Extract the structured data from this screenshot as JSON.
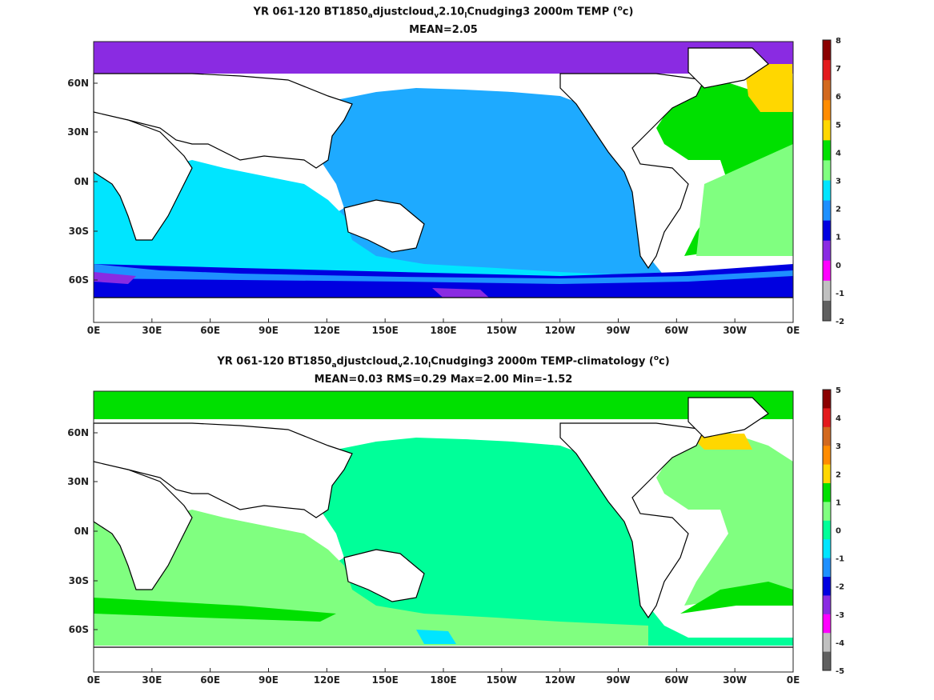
{
  "panels": [
    {
      "title_prefix": "YR 061-120 BT1850",
      "title_sub1": "a",
      "title_mid1": "djustcloud",
      "title_sub2": "v",
      "title_mid2": "2.10",
      "title_sub3": "l",
      "title_suffix": "Cnudging3 2000m TEMP (",
      "title_sup": "o",
      "title_end": "c)",
      "stats": "MEAN=2.05",
      "colorbar": {
        "ticks": [
          "8",
          "7",
          "6",
          "5",
          "4",
          "3",
          "2",
          "1",
          "0",
          "-1",
          "-2"
        ],
        "colors": [
          "#8b0000",
          "#e31a1c",
          "#d2691e",
          "#ff8c00",
          "#ffd700",
          "#00e000",
          "#80ff80",
          "#00e5ff",
          "#1e90ff",
          "#0000e0",
          "#8a2be2",
          "#ff00ff",
          "#c0c0c0",
          "#606060"
        ]
      }
    },
    {
      "title_prefix": "YR 061-120 BT1850",
      "title_sub1": "a",
      "title_mid1": "djustcloud",
      "title_sub2": "v",
      "title_mid2": "2.10",
      "title_sub3": "l",
      "title_suffix": "Cnudging3 2000m TEMP-climatology (",
      "title_sup": "o",
      "title_end": "c)",
      "stats": "MEAN=0.03   RMS=0.29   Max=2.00   Min=-1.52",
      "colorbar": {
        "ticks": [
          "5",
          "4",
          "3",
          "2",
          "1",
          "0",
          "-1",
          "-2",
          "-3",
          "-4",
          "-5"
        ],
        "colors": [
          "#8b0000",
          "#e31a1c",
          "#d2691e",
          "#ff8c00",
          "#ffd700",
          "#00e000",
          "#80ff80",
          "#00ff99",
          "#00e5ff",
          "#1e90ff",
          "#0000e0",
          "#8a2be2",
          "#ff00ff",
          "#c0c0c0",
          "#606060"
        ]
      }
    }
  ],
  "x_ticks": [
    "0E",
    "30E",
    "60E",
    "90E",
    "120E",
    "150E",
    "180E",
    "150W",
    "120W",
    "90W",
    "60W",
    "30W",
    "0E"
  ],
  "y_ticks": [
    "60N",
    "30N",
    "0N",
    "30S",
    "60S"
  ],
  "palette": {
    "ocean_top_main": "#1eaaff",
    "ocean_top_indian": "#00e5ff",
    "ocean_top_atlantic": "#00e000",
    "ocean_top_south": "#0000e0",
    "ocean_top_polar": "#8a2be2",
    "ocean_bottom_main": "#00ff99",
    "ocean_bottom_atlantic": "#80ff80",
    "land": "#ffffff",
    "coast": "#000000"
  }
}
